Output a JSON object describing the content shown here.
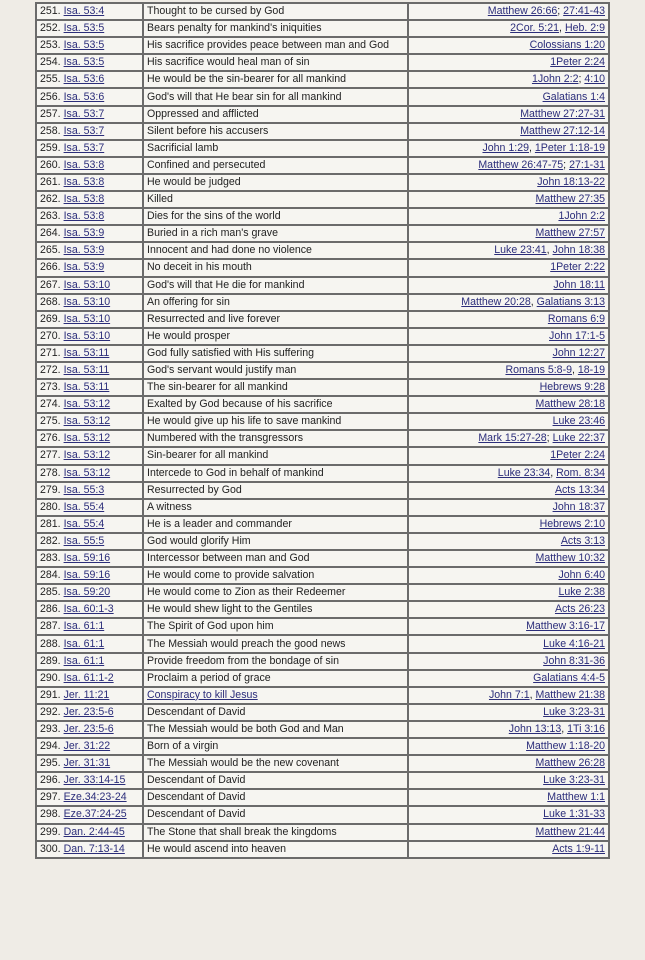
{
  "colors": {
    "link": "#2b2d7a",
    "border": "#6b6b6b",
    "cell_bg": "#f6f5f1",
    "page_bg": "#efece6"
  },
  "rows": [
    {
      "num": "251.",
      "ot": "Isa. 53:4",
      "desc": "Thought to be cursed by God",
      "refs": [
        {
          "t": "Matthew 26:66",
          "s": "; "
        },
        {
          "t": "27:41-43"
        }
      ]
    },
    {
      "num": "252.",
      "ot": "Isa. 53:5",
      "desc": "Bears penalty for mankind's iniquities",
      "refs": [
        {
          "t": "2Cor. 5:21",
          "s": ", "
        },
        {
          "t": "Heb. 2:9"
        }
      ]
    },
    {
      "num": "253.",
      "ot": "Isa. 53:5",
      "desc": "His sacrifice provides peace between man and God",
      "refs": [
        {
          "t": "Colossians 1:20"
        }
      ]
    },
    {
      "num": "254.",
      "ot": "Isa. 53:5",
      "desc": "His sacrifice would heal man of sin",
      "refs": [
        {
          "t": "1Peter 2:24"
        }
      ]
    },
    {
      "num": "255.",
      "ot": "Isa. 53:6",
      "desc": "He would be the sin-bearer for all mankind",
      "refs": [
        {
          "t": "1John 2:2",
          "s": "; "
        },
        {
          "t": "4:10"
        }
      ]
    },
    {
      "num": "256.",
      "ot": "Isa. 53:6",
      "desc": "God's will that He bear sin for all mankind",
      "refs": [
        {
          "t": "Galatians 1:4"
        }
      ]
    },
    {
      "num": "257.",
      "ot": "Isa. 53:7",
      "desc": "Oppressed and afflicted",
      "refs": [
        {
          "t": "Matthew 27:27-31"
        }
      ]
    },
    {
      "num": "258.",
      "ot": "Isa. 53:7",
      "desc": "Silent before his accusers",
      "refs": [
        {
          "t": "Matthew 27:12-14"
        }
      ]
    },
    {
      "num": "259.",
      "ot": "Isa. 53:7",
      "desc": "Sacrificial lamb",
      "refs": [
        {
          "t": "John 1:29",
          "s": ", "
        },
        {
          "t": "1Peter 1:18-19"
        }
      ]
    },
    {
      "num": "260.",
      "ot": "Isa. 53:8",
      "desc": "Confined and persecuted",
      "refs": [
        {
          "t": "Matthew 26:47-75",
          "s": "; "
        },
        {
          "t": "27:1-31"
        }
      ]
    },
    {
      "num": "261.",
      "ot": "Isa. 53:8",
      "desc": "He would be judged",
      "refs": [
        {
          "t": "John 18:13-22"
        }
      ]
    },
    {
      "num": "262.",
      "ot": "Isa. 53:8",
      "desc": "Killed",
      "refs": [
        {
          "t": "Matthew 27:35"
        }
      ]
    },
    {
      "num": "263.",
      "ot": "Isa. 53:8",
      "desc": "Dies for the sins of the world",
      "refs": [
        {
          "t": "1John 2:2"
        }
      ]
    },
    {
      "num": "264.",
      "ot": "Isa. 53:9",
      "desc": "Buried in a rich man's grave",
      "refs": [
        {
          "t": "Matthew 27:57"
        }
      ]
    },
    {
      "num": "265.",
      "ot": "Isa. 53:9",
      "desc": "Innocent and had done no violence",
      "refs": [
        {
          "t": "Luke 23:41",
          "s": ", "
        },
        {
          "t": "John 18:38"
        }
      ]
    },
    {
      "num": "266.",
      "ot": "Isa. 53:9",
      "desc": "No deceit in his mouth",
      "refs": [
        {
          "t": "1Peter 2:22"
        }
      ]
    },
    {
      "num": "267.",
      "ot": "Isa. 53:10",
      "desc": "God's will that He die for mankind",
      "refs": [
        {
          "t": "John 18:11"
        }
      ]
    },
    {
      "num": "268.",
      "ot": "Isa. 53:10",
      "desc": "An offering for sin",
      "refs": [
        {
          "t": "Matthew 20:28",
          "s": ", "
        },
        {
          "t": "Galatians 3:13"
        }
      ]
    },
    {
      "num": "269.",
      "ot": "Isa. 53:10",
      "desc": "Resurrected and live forever",
      "refs": [
        {
          "t": "Romans 6:9"
        }
      ]
    },
    {
      "num": "270.",
      "ot": "Isa. 53:10",
      "desc": "He would prosper",
      "refs": [
        {
          "t": "John 17:1-5"
        }
      ]
    },
    {
      "num": "271.",
      "ot": "Isa. 53:11",
      "desc": "God fully satisfied with His suffering",
      "refs": [
        {
          "t": "John 12:27"
        }
      ]
    },
    {
      "num": "272.",
      "ot": "Isa. 53:11",
      "desc": "God's servant would justify man",
      "refs": [
        {
          "t": "Romans 5:8-9",
          "s": ", "
        },
        {
          "t": "18-19"
        }
      ]
    },
    {
      "num": "273.",
      "ot": "Isa. 53:11",
      "desc": "The sin-bearer for all mankind",
      "refs": [
        {
          "t": "Hebrews 9:28"
        }
      ]
    },
    {
      "num": "274.",
      "ot": "Isa. 53:12",
      "desc": "Exalted by God because of his sacrifice",
      "refs": [
        {
          "t": "Matthew 28:18"
        }
      ]
    },
    {
      "num": "275.",
      "ot": "Isa. 53:12",
      "desc": "He would give up his life to save mankind",
      "refs": [
        {
          "t": "Luke 23:46"
        }
      ]
    },
    {
      "num": "276.",
      "ot": "Isa. 53:12",
      "desc": "Numbered with the transgressors",
      "refs": [
        {
          "t": "Mark 15:27-28",
          "s": "; "
        },
        {
          "t": "Luke 22:37"
        }
      ]
    },
    {
      "num": "277.",
      "ot": "Isa. 53:12",
      "desc": "Sin-bearer for all mankind",
      "refs": [
        {
          "t": "1Peter 2:24"
        }
      ]
    },
    {
      "num": "278.",
      "ot": "Isa. 53:12",
      "desc": "Intercede to God in behalf of mankind",
      "refs": [
        {
          "t": "Luke 23:34",
          "s": ", "
        },
        {
          "t": "Rom. 8:34"
        }
      ]
    },
    {
      "num": "279.",
      "ot": "Isa. 55:3",
      "desc": "Resurrected by God",
      "refs": [
        {
          "t": "Acts 13:34"
        }
      ]
    },
    {
      "num": "280.",
      "ot": "Isa. 55:4",
      "desc": "A witness",
      "refs": [
        {
          "t": "John 18:37"
        }
      ]
    },
    {
      "num": "281.",
      "ot": "Isa. 55:4",
      "desc": "He is a leader and commander",
      "refs": [
        {
          "t": "Hebrews 2:10"
        }
      ]
    },
    {
      "num": "282.",
      "ot": "Isa. 55:5",
      "desc": "God would glorify Him",
      "refs": [
        {
          "t": "Acts 3:13"
        }
      ]
    },
    {
      "num": "283.",
      "ot": "Isa. 59:16",
      "desc": "Intercessor between man and God",
      "refs": [
        {
          "t": "Matthew 10:32"
        }
      ]
    },
    {
      "num": "284.",
      "ot": "Isa. 59:16",
      "desc": "He would come to provide salvation",
      "refs": [
        {
          "t": "John 6:40"
        }
      ]
    },
    {
      "num": "285.",
      "ot": "Isa. 59:20",
      "desc": "He would come to Zion as their Redeemer",
      "refs": [
        {
          "t": "Luke 2:38"
        }
      ]
    },
    {
      "num": "286.",
      "ot": "Isa. 60:1-3",
      "desc": "He would shew light to the Gentiles",
      "refs": [
        {
          "t": "Acts 26:23"
        }
      ]
    },
    {
      "num": "287.",
      "ot": "Isa. 61:1",
      "desc": "The Spirit of God upon him",
      "refs": [
        {
          "t": "Matthew 3:16-17"
        }
      ]
    },
    {
      "num": "288.",
      "ot": "Isa. 61:1",
      "desc": "The Messiah would preach the good news",
      "refs": [
        {
          "t": "Luke 4:16-21"
        }
      ]
    },
    {
      "num": "289.",
      "ot": "Isa. 61:1",
      "desc": "Provide freedom from the bondage of sin",
      "refs": [
        {
          "t": "John 8:31-36"
        }
      ]
    },
    {
      "num": "290.",
      "ot": "Isa. 61:1-2",
      "desc": "Proclaim a period of grace",
      "refs": [
        {
          "t": "Galatians 4:4-5"
        }
      ]
    },
    {
      "num": "291.",
      "ot": "Jer. 11:21",
      "desc": "Conspiracy to kill Jesus",
      "desc_link": true,
      "refs": [
        {
          "t": "John 7:1",
          "s": ", "
        },
        {
          "t": "Matthew 21:38"
        }
      ]
    },
    {
      "num": "292.",
      "ot": "Jer. 23:5-6",
      "desc": "Descendant of David",
      "refs": [
        {
          "t": "Luke 3:23-31"
        }
      ]
    },
    {
      "num": "293.",
      "ot": "Jer. 23:5-6",
      "desc": "The Messiah would be both God and Man",
      "refs": [
        {
          "t": "John 13:13",
          "s": ", "
        },
        {
          "t": "1Ti 3:16"
        }
      ]
    },
    {
      "num": "294.",
      "ot": "Jer. 31:22",
      "desc": "Born of a virgin",
      "refs": [
        {
          "t": "Matthew 1:18-20"
        }
      ]
    },
    {
      "num": "295.",
      "ot": "Jer. 31:31",
      "desc": "The Messiah would be the new covenant",
      "refs": [
        {
          "t": "Matthew 26:28"
        }
      ]
    },
    {
      "num": "296.",
      "ot": "Jer. 33:14-15",
      "desc": "Descendant of David",
      "refs": [
        {
          "t": "Luke 3:23-31"
        }
      ]
    },
    {
      "num": "297.",
      "ot": "Eze.34:23-24",
      "desc": "Descendant of David",
      "refs": [
        {
          "t": "Matthew 1:1"
        }
      ]
    },
    {
      "num": "298.",
      "ot": "Eze.37:24-25",
      "desc": "Descendant of David",
      "refs": [
        {
          "t": "Luke 1:31-33"
        }
      ]
    },
    {
      "num": "299.",
      "ot": "Dan. 2:44-45",
      "desc": "The Stone that shall break the kingdoms",
      "refs": [
        {
          "t": "Matthew 21:44"
        }
      ]
    },
    {
      "num": "300.",
      "ot": "Dan. 7:13-14",
      "desc": "He would ascend into heaven",
      "refs": [
        {
          "t": "Acts 1:9-11"
        }
      ]
    }
  ]
}
